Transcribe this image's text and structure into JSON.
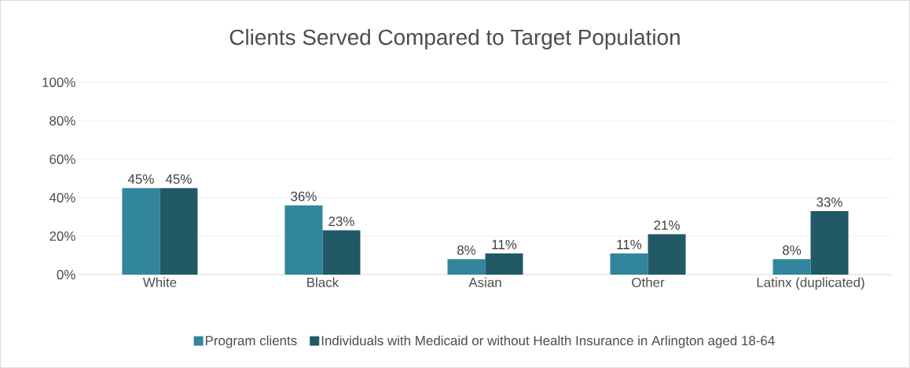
{
  "chart_data": {
    "type": "bar",
    "title": "Clients Served Compared to Target Population",
    "categories": [
      "White",
      "Black",
      "Asian",
      "Other",
      "Latinx (duplicated)"
    ],
    "series": [
      {
        "name": "Program clients",
        "color": "#31859c",
        "values": [
          45,
          36,
          8,
          11,
          8
        ],
        "value_labels": [
          "45%",
          "36%",
          "8%",
          "11%",
          "8%"
        ]
      },
      {
        "name": "Individuals with Medicaid or without Health Insurance in Arlington aged 18-64",
        "color": "#215967",
        "values": [
          45,
          23,
          11,
          21,
          33
        ],
        "value_labels": [
          "45%",
          "23%",
          "11%",
          "21%",
          "33%"
        ]
      }
    ],
    "ylim": [
      0,
      100
    ],
    "yticks": [
      {
        "value": 0,
        "label": "0%"
      },
      {
        "value": 20,
        "label": "20%"
      },
      {
        "value": 40,
        "label": "40%"
      },
      {
        "value": 60,
        "label": "60%"
      },
      {
        "value": 80,
        "label": "80%"
      },
      {
        "value": 100,
        "label": "100%"
      }
    ],
    "grid": "y",
    "legend": "bottom"
  }
}
